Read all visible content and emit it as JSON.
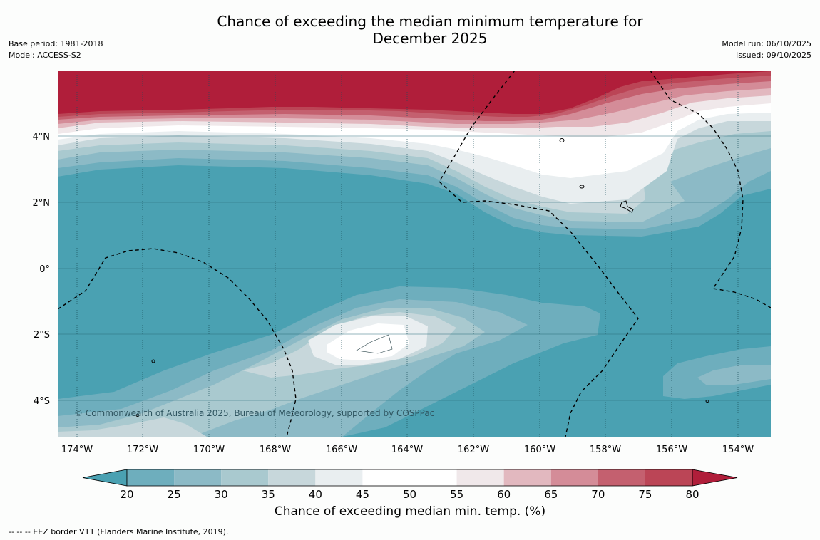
{
  "header": {
    "title_line1": "Chance of exceeding the median minimum temperature for",
    "title_line2": "December 2025",
    "base_period": "Base period: 1981-2018",
    "model": "Model: ACCESS-S2",
    "model_run": "Model run: 06/10/2025",
    "issued": "Issued: 09/10/2025"
  },
  "map": {
    "lon_labels": [
      "174°W",
      "172°W",
      "170°W",
      "168°W",
      "166°W",
      "164°W",
      "162°W",
      "160°W",
      "158°W",
      "156°W",
      "154°W"
    ],
    "lat_labels": [
      "4°N",
      "2°N",
      "0°",
      "2°S",
      "4°S"
    ],
    "copyright": "© Commonwealth of Australia 2025, Bureau of Meteorology, supported by COSPPac",
    "colors": {
      "ocean_base": "#4aa1b2",
      "lt20": "#4aa1b2",
      "b20_25": "#6eaebd",
      "b25_30": "#8cbac6",
      "b30_35": "#a9c9cf",
      "b35_40": "#c7d7db",
      "b40_45": "#e9eef0",
      "b45_55": "#ffffff",
      "b55_60": "#f0e8ea",
      "b60_65": "#e2b8bf",
      "b65_70": "#d48c98",
      "b70_75": "#c4606f",
      "b75_80": "#bb4556",
      "gt80": "#b01e3a"
    }
  },
  "colorbar": {
    "ticks": [
      "20",
      "25",
      "30",
      "35",
      "40",
      "45",
      "50",
      "55",
      "60",
      "65",
      "70",
      "75",
      "80"
    ],
    "label": "Chance of exceeding median min. temp. (%)",
    "low_color": "#4aa1b2",
    "high_color": "#b01e3a",
    "segment_colors": [
      "#6eaebd",
      "#8cbac6",
      "#a9c9cf",
      "#c7d7db",
      "#e9eef0",
      "#ffffff",
      "#ffffff",
      "#f0e8ea",
      "#e2b8bf",
      "#d48c98",
      "#c4606f",
      "#bb4556"
    ]
  },
  "footnote": "-- -- -- EEZ border V11 (Flanders Marine Institute, 2019)."
}
